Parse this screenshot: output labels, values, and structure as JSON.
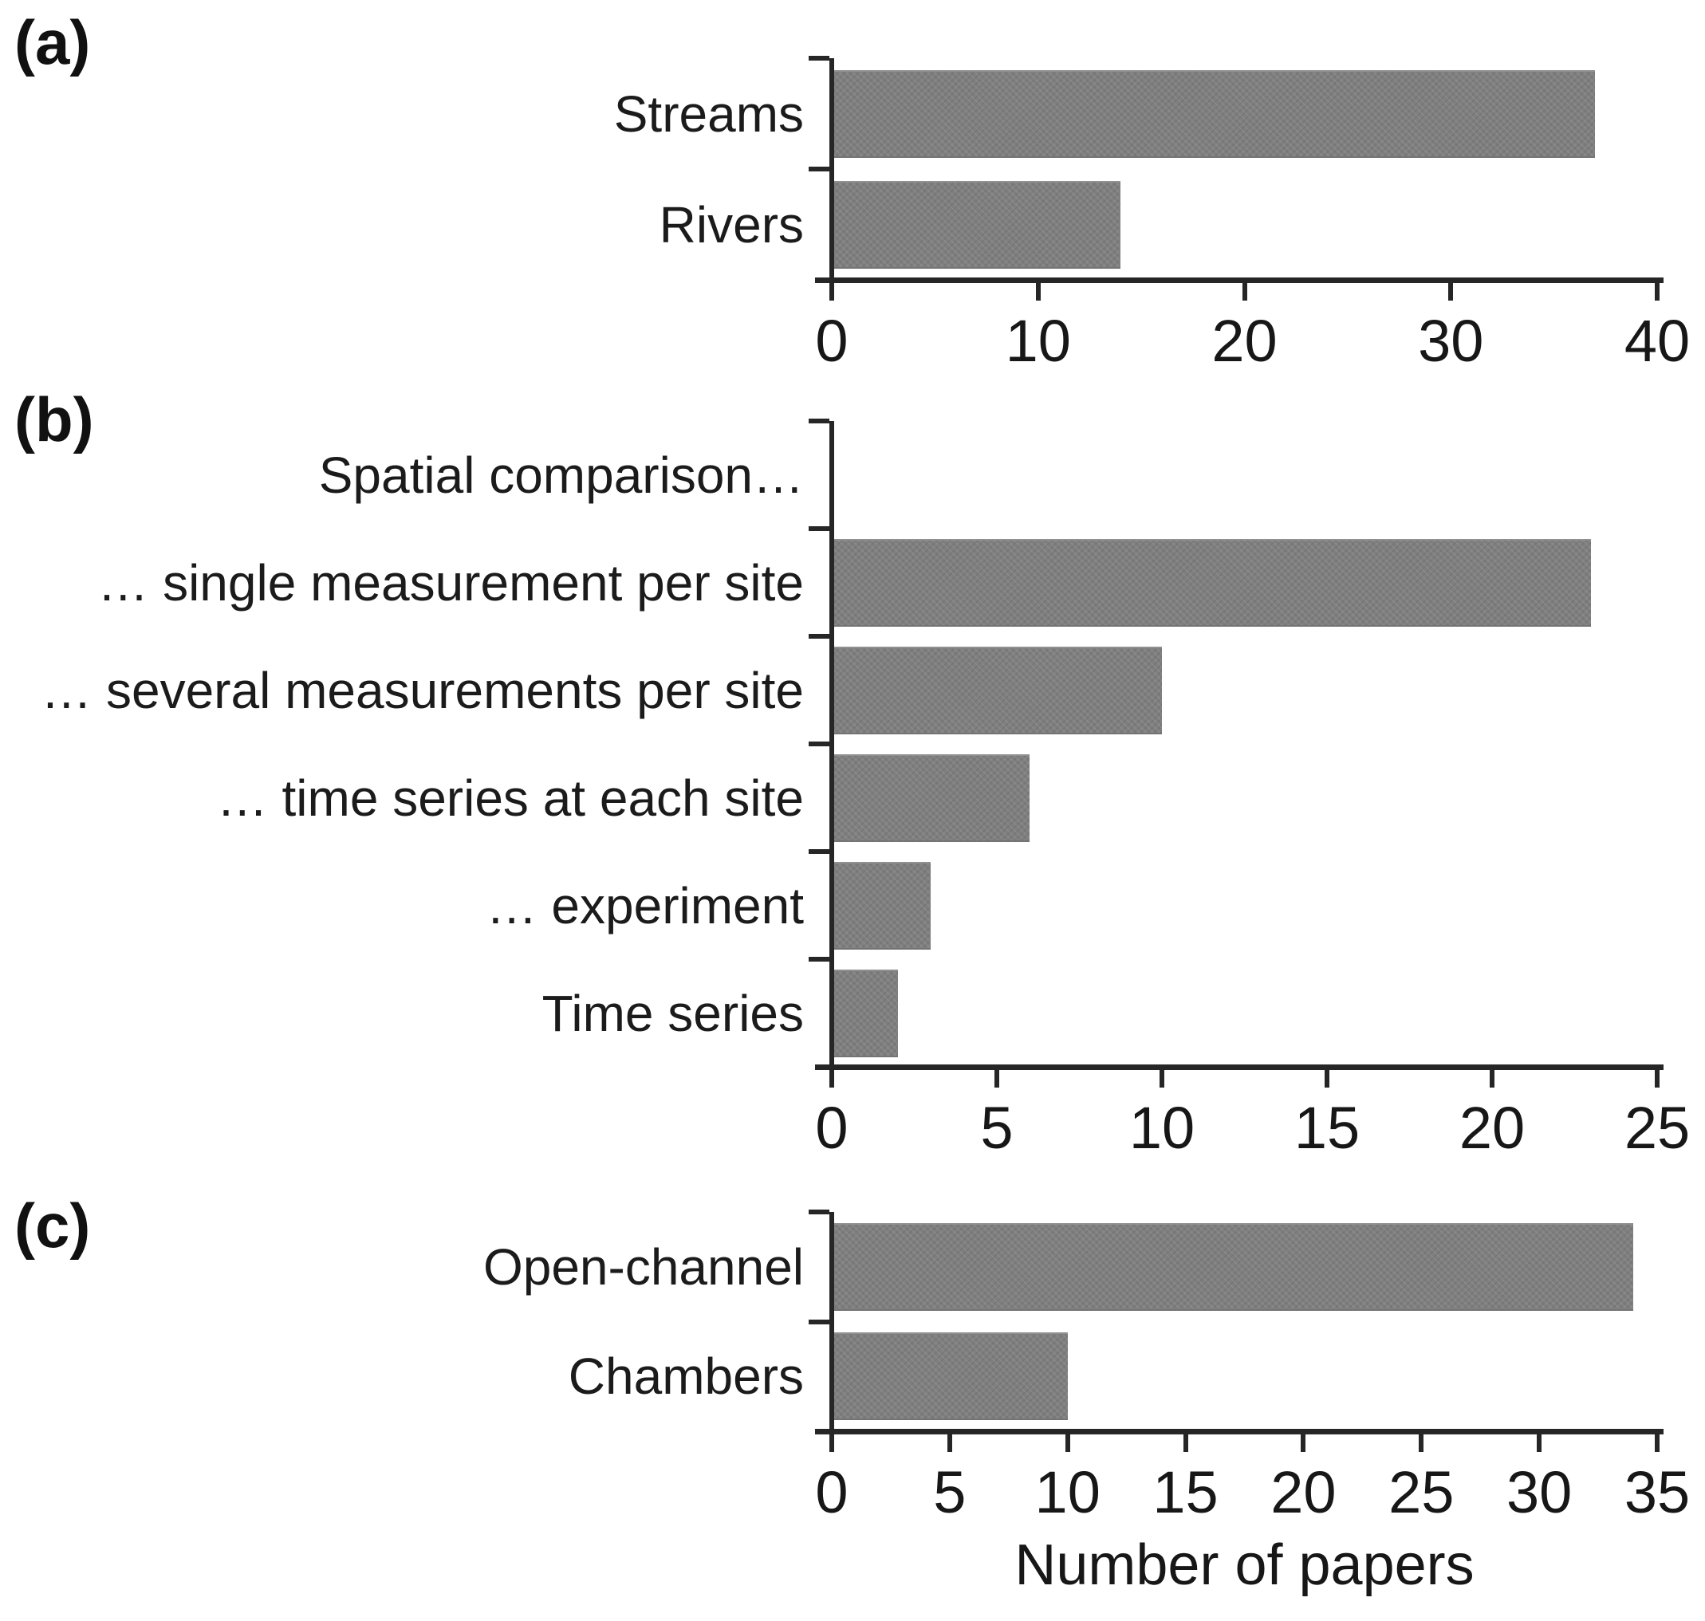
{
  "figure": {
    "background": "#ffffff",
    "xlabel": "Number of papers"
  },
  "style": {
    "bar_color": "#7f7f7f",
    "axis_color": "#262626",
    "text_color": "#1b1b1b"
  },
  "chart_data": [
    {
      "type": "bar",
      "orientation": "horizontal",
      "panel_label": "(a)",
      "categories": [
        "Streams",
        "Rivers"
      ],
      "values": [
        37,
        14
      ],
      "xlim": [
        0,
        40
      ],
      "xticks": [
        0,
        10,
        20,
        30,
        40
      ],
      "grid": false,
      "legend": "none"
    },
    {
      "type": "bar",
      "orientation": "horizontal",
      "panel_label": "(b)",
      "categories": [
        "Spatial comparison…",
        "… single measurement per site",
        "… several measurements per site",
        "… time series at each site",
        "… experiment",
        "Time series"
      ],
      "values": [
        0,
        23,
        10,
        6,
        3,
        2
      ],
      "xlim": [
        0,
        25
      ],
      "xticks": [
        0,
        5,
        10,
        15,
        20,
        25
      ],
      "grid": false,
      "legend": "none"
    },
    {
      "type": "bar",
      "orientation": "horizontal",
      "panel_label": "(c)",
      "categories": [
        "Open-channel",
        "Chambers"
      ],
      "values": [
        34,
        10
      ],
      "xlim": [
        0,
        35
      ],
      "xticks": [
        0,
        5,
        10,
        15,
        20,
        25,
        30,
        35
      ],
      "xlabel": "Number of papers",
      "grid": false,
      "legend": "none"
    }
  ]
}
